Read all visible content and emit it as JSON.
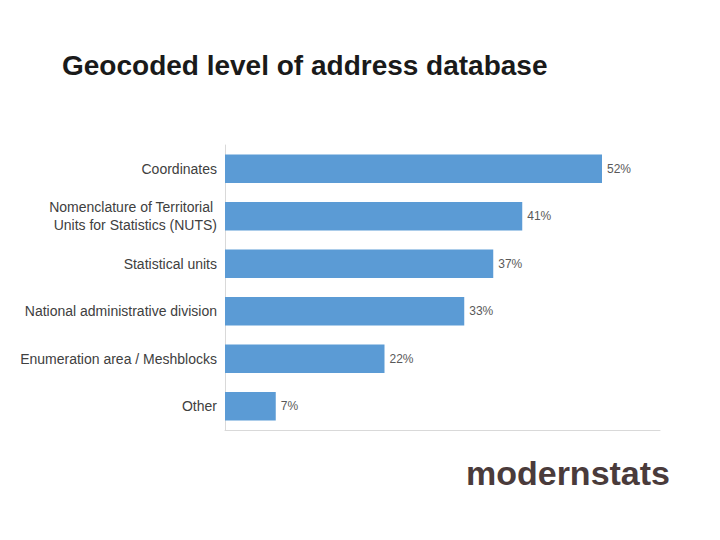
{
  "chart_data": {
    "type": "bar",
    "title": "Geocoded level of address database",
    "orientation": "horizontal",
    "categories": [
      "Coordinates",
      "Nomenclature of Territorial Units for Statistics (NUTS)",
      "Statistical units",
      "National administrative division",
      "Enumeration area / Meshblocks",
      "Other"
    ],
    "values": [
      52,
      41,
      37,
      33,
      22,
      7
    ],
    "value_labels": [
      "52%",
      "41%",
      "37%",
      "33%",
      "22%",
      "7%"
    ],
    "color": "#5b9bd5",
    "xlim": [
      0,
      60
    ],
    "xticks": [
      0,
      60
    ],
    "grid": false,
    "data_labels": true,
    "tick_labels": "y",
    "annotations": [
      "modernstats"
    ]
  }
}
